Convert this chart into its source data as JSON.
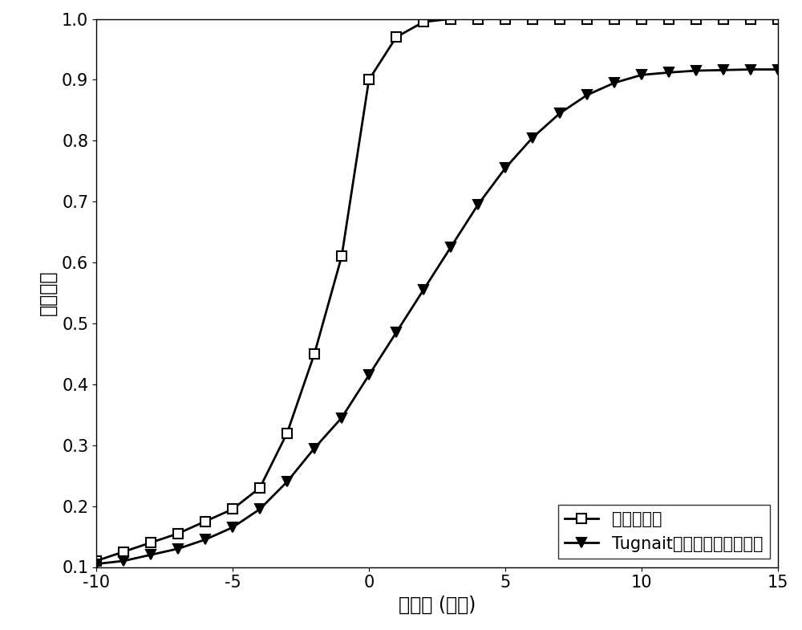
{
  "series1_x": [
    -10,
    -9,
    -8,
    -7,
    -6,
    -5,
    -4,
    -3,
    -2,
    -1,
    0,
    1,
    2,
    3,
    4,
    5,
    6,
    7,
    8,
    9,
    10,
    11,
    12,
    13,
    14,
    15
  ],
  "series1_y": [
    0.11,
    0.125,
    0.14,
    0.155,
    0.175,
    0.195,
    0.23,
    0.32,
    0.45,
    0.61,
    0.9,
    0.97,
    0.995,
    1.0,
    1.0,
    1.0,
    1.0,
    1.0,
    1.0,
    1.0,
    1.0,
    1.0,
    1.0,
    1.0,
    1.0,
    1.0
  ],
  "series2_x": [
    -10,
    -9,
    -8,
    -7,
    -6,
    -5,
    -4,
    -3,
    -2,
    -1,
    0,
    1,
    2,
    3,
    4,
    5,
    6,
    7,
    8,
    9,
    10,
    11,
    12,
    13,
    14,
    15
  ],
  "series2_y": [
    0.105,
    0.11,
    0.12,
    0.13,
    0.145,
    0.165,
    0.195,
    0.24,
    0.295,
    0.345,
    0.415,
    0.485,
    0.555,
    0.625,
    0.695,
    0.755,
    0.805,
    0.845,
    0.875,
    0.895,
    0.908,
    0.912,
    0.915,
    0.916,
    0.917,
    0.917
  ],
  "xlabel": "信噪比 (分贝)",
  "ylabel": "检测概率",
  "legend1": "本发明方法",
  "legend2": "Tugnait提出的频谱感知方法",
  "xlim": [
    -10,
    15
  ],
  "ylim": [
    0.1,
    1.0
  ],
  "xticks": [
    -10,
    -5,
    0,
    5,
    10,
    15
  ],
  "yticks": [
    0.1,
    0.2,
    0.3,
    0.4,
    0.5,
    0.6,
    0.7,
    0.8,
    0.9,
    1.0
  ],
  "line_color": "#000000",
  "marker1": "s",
  "marker2": "v",
  "linewidth": 2.0,
  "markersize": 9,
  "legend_fontsize": 15,
  "axis_fontsize": 17,
  "tick_fontsize": 15
}
